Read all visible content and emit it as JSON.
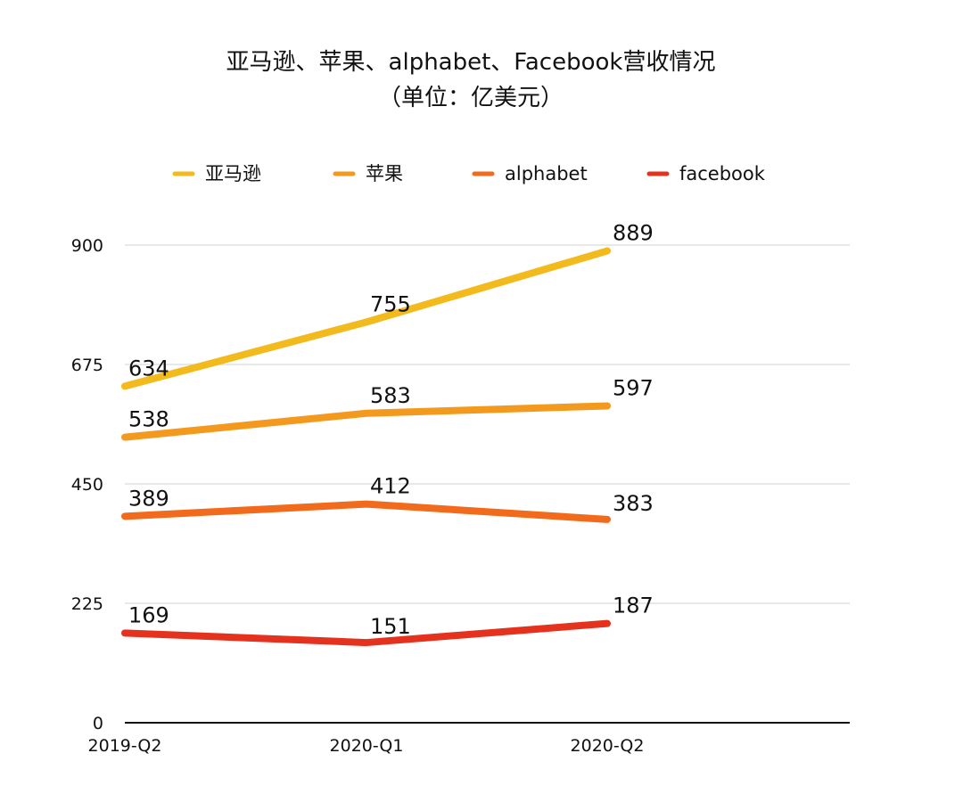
{
  "chart_data": {
    "type": "line",
    "title_line1": "亚马逊、苹果、alphabet、Facebook营收情况",
    "title_line2": "（单位：亿美元）",
    "categories": [
      "2019-Q2",
      "2020-Q1",
      "2020-Q2"
    ],
    "y_ticks": [
      0,
      225,
      450,
      675,
      900
    ],
    "ylim": [
      0,
      900
    ],
    "grid": true,
    "legend_position": "top",
    "series": [
      {
        "name": "亚马逊",
        "color": "#F2BA1C",
        "values": [
          634,
          755,
          889
        ]
      },
      {
        "name": "苹果",
        "color": "#F39A1E",
        "values": [
          538,
          583,
          597
        ]
      },
      {
        "name": "alphabet",
        "color": "#F26A1B",
        "values": [
          389,
          412,
          383
        ]
      },
      {
        "name": "facebook",
        "color": "#E5321F",
        "values": [
          169,
          151,
          187
        ]
      }
    ]
  }
}
